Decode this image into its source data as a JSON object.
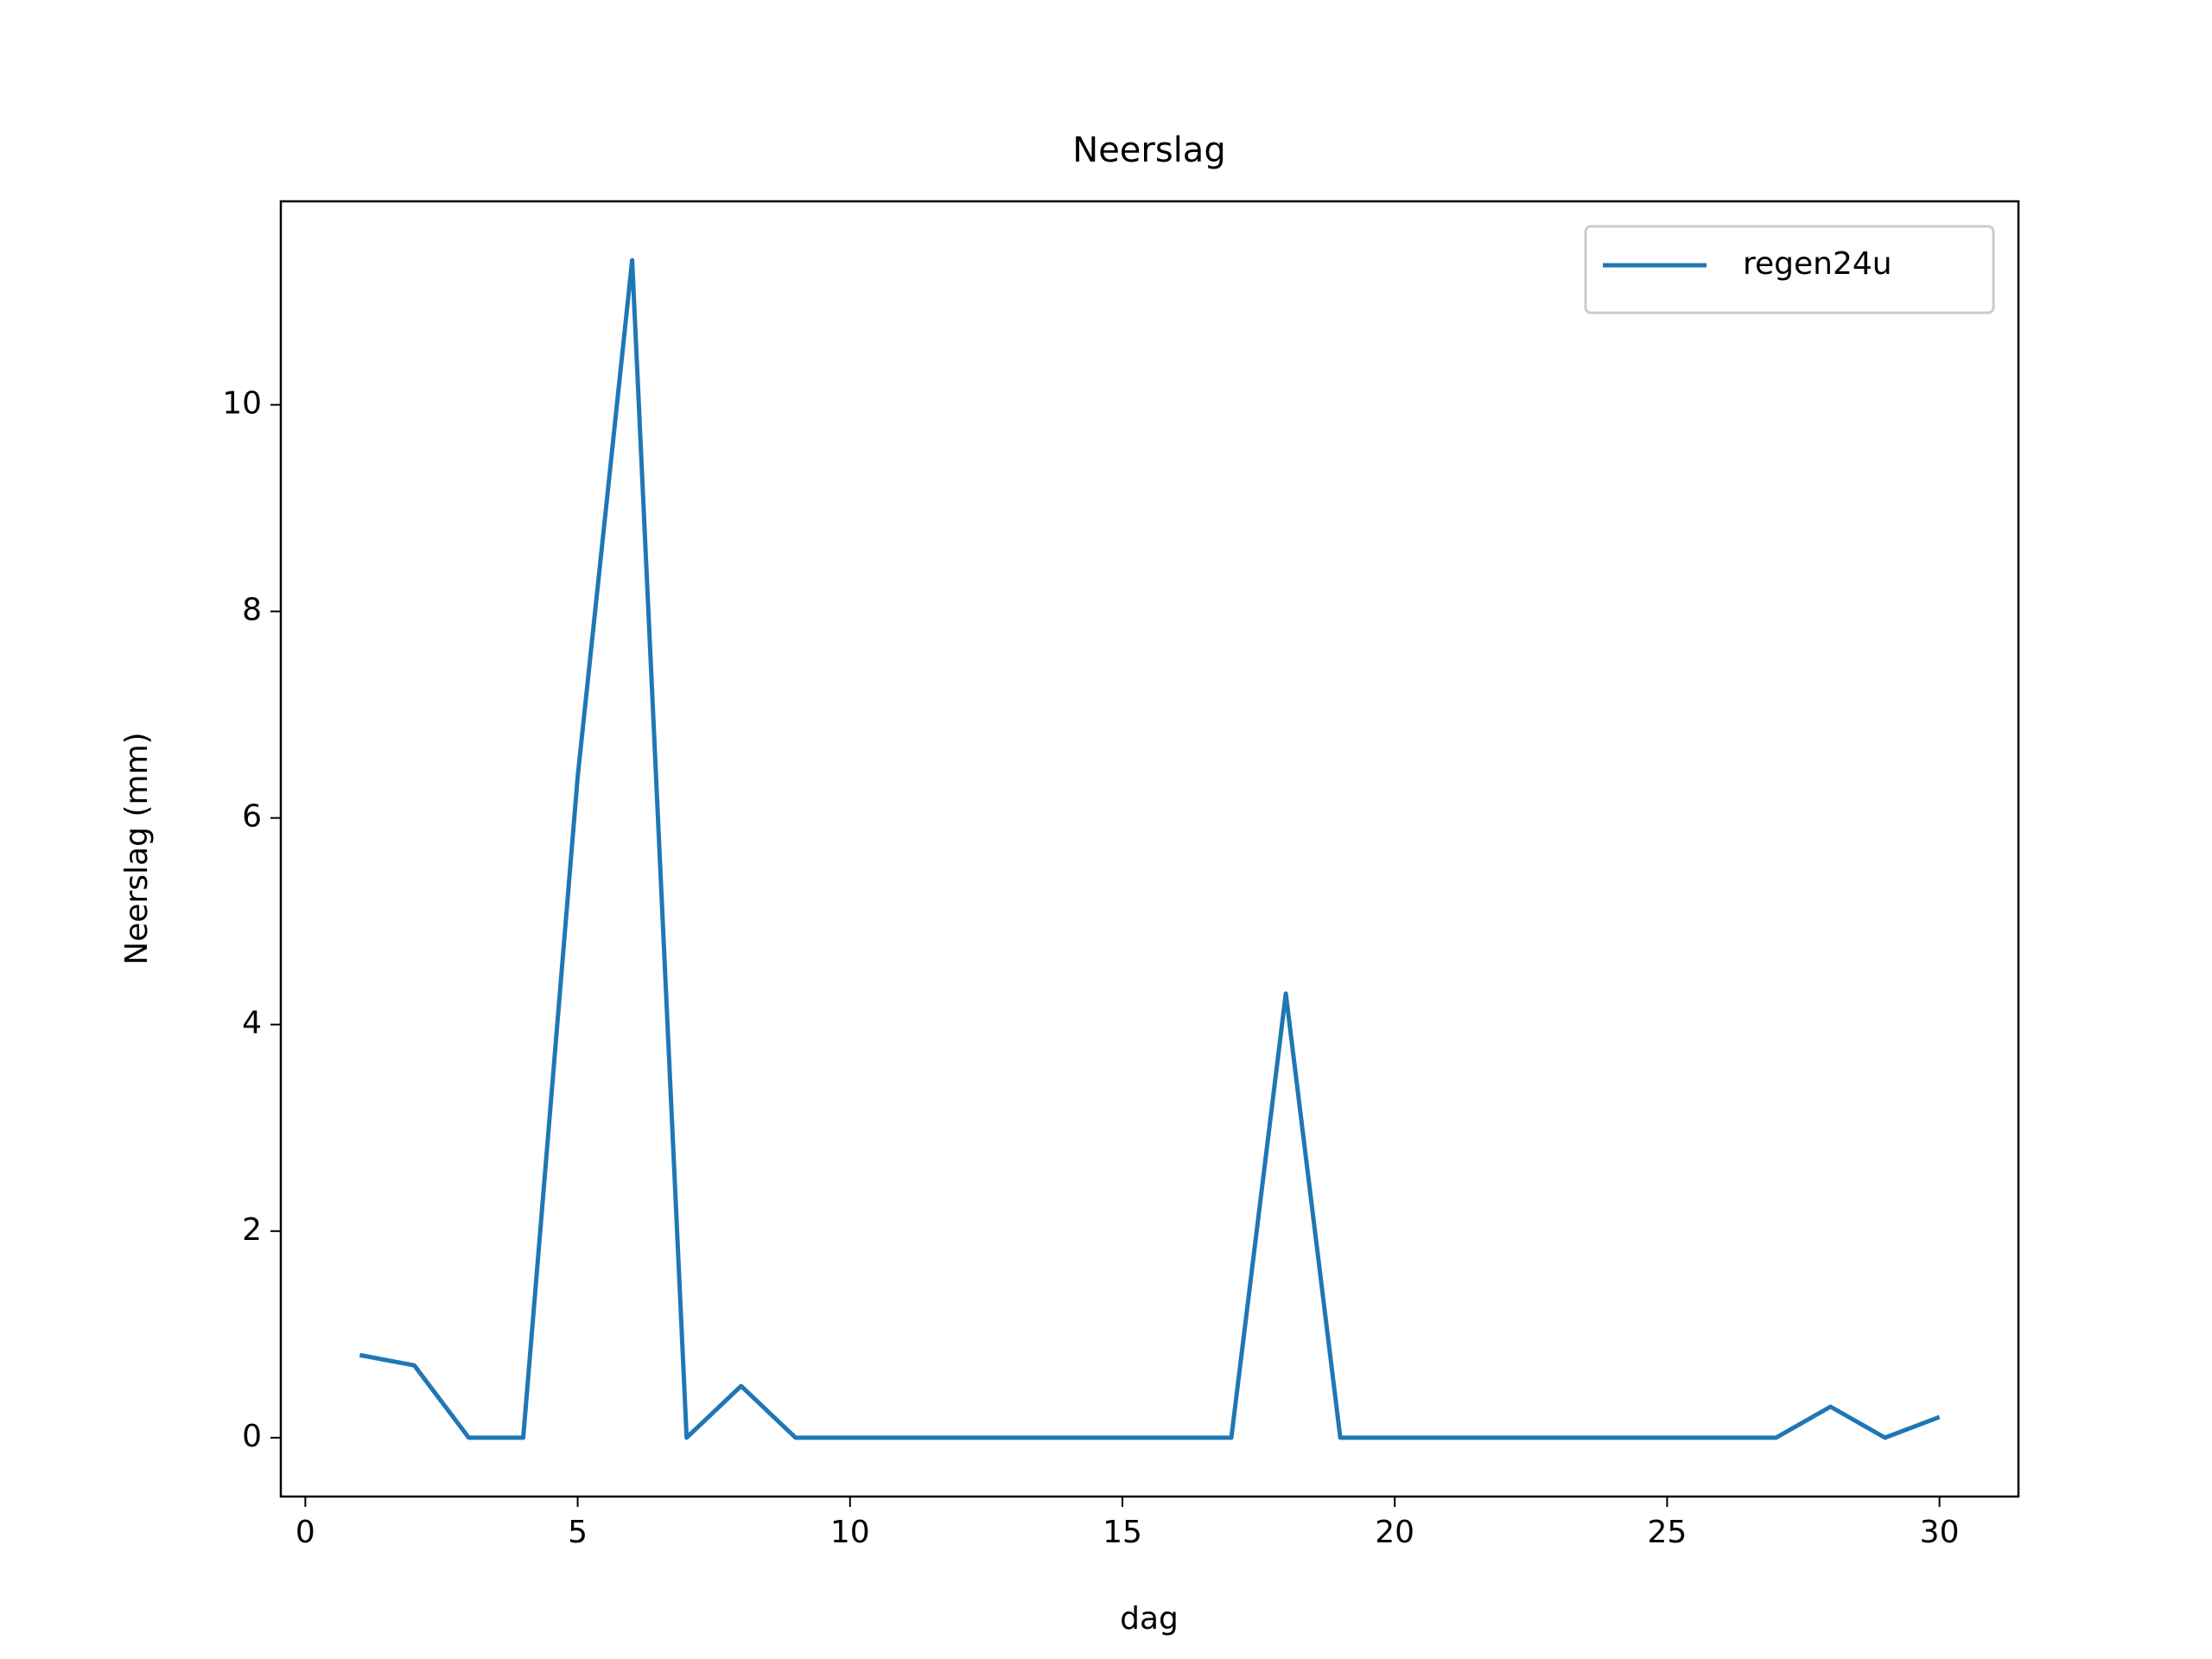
{
  "chart_data": {
    "type": "line",
    "title": "Neerslag",
    "x_label": "dag",
    "y_label": "Neerslag (mm)",
    "x": [
      1,
      2,
      3,
      4,
      5,
      6,
      7,
      8,
      9,
      10,
      11,
      12,
      13,
      14,
      15,
      16,
      17,
      18,
      19,
      20,
      21,
      22,
      23,
      24,
      25,
      26,
      27,
      28,
      29,
      30
    ],
    "series": [
      {
        "name": "regen24u",
        "color": "#1f77b4",
        "values": [
          0.8,
          0.7,
          0,
          0,
          6.4,
          11.4,
          0,
          0.5,
          0,
          0,
          0,
          0,
          0,
          0,
          0,
          0,
          0,
          4.3,
          0,
          0,
          0,
          0,
          0,
          0,
          0,
          0,
          0,
          0.3,
          0,
          0.2
        ]
      }
    ],
    "xlim": [
      -0.45,
      31.45
    ],
    "xticks": [
      0,
      5,
      10,
      15,
      20,
      25,
      30
    ],
    "ylim": [
      -0.57,
      11.97
    ],
    "yticks": [
      0,
      2,
      4,
      6,
      8,
      10
    ],
    "grid": false,
    "legend": "upper right"
  }
}
